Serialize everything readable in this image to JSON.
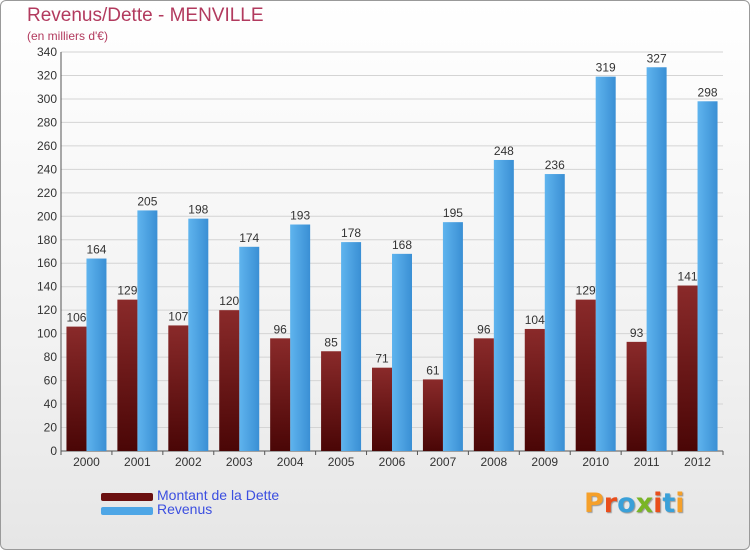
{
  "header": {
    "title": "Revenus/Dette - MENVILLE",
    "subtitle": "(en milliers d'€)"
  },
  "colors": {
    "debt": "#7a1818",
    "revenue": "#4ea6e6",
    "title": "#b23a5e",
    "legend_text": "#3b4ee0"
  },
  "logo": {
    "text": "Proxiti",
    "letter_colors": [
      "#f5a02a",
      "#e94e1b",
      "#3aa0d8",
      "#7ab526",
      "#e94e1b",
      "#3aa0d8",
      "#f5a02a"
    ]
  },
  "chart_data": {
    "type": "bar",
    "title": "Revenus/Dette - MENVILLE",
    "subtitle": "(en milliers d'€)",
    "xlabel": "",
    "ylabel": "",
    "categories": [
      "2000",
      "2001",
      "2002",
      "2003",
      "2004",
      "2005",
      "2006",
      "2007",
      "2008",
      "2009",
      "2010",
      "2011",
      "2012"
    ],
    "series": [
      {
        "name": "Montant de la Dette",
        "values": [
          106,
          129,
          107,
          120,
          96,
          85,
          71,
          61,
          96,
          104,
          129,
          93,
          141
        ]
      },
      {
        "name": "Revenus",
        "values": [
          164,
          205,
          198,
          174,
          193,
          178,
          168,
          195,
          248,
          236,
          319,
          327,
          298
        ]
      }
    ],
    "ylim": [
      0,
      340
    ],
    "yticks": [
      0,
      20,
      40,
      60,
      80,
      100,
      120,
      140,
      160,
      180,
      200,
      220,
      240,
      260,
      280,
      300,
      320,
      340
    ],
    "grid": true,
    "legend": "bottom-left"
  }
}
